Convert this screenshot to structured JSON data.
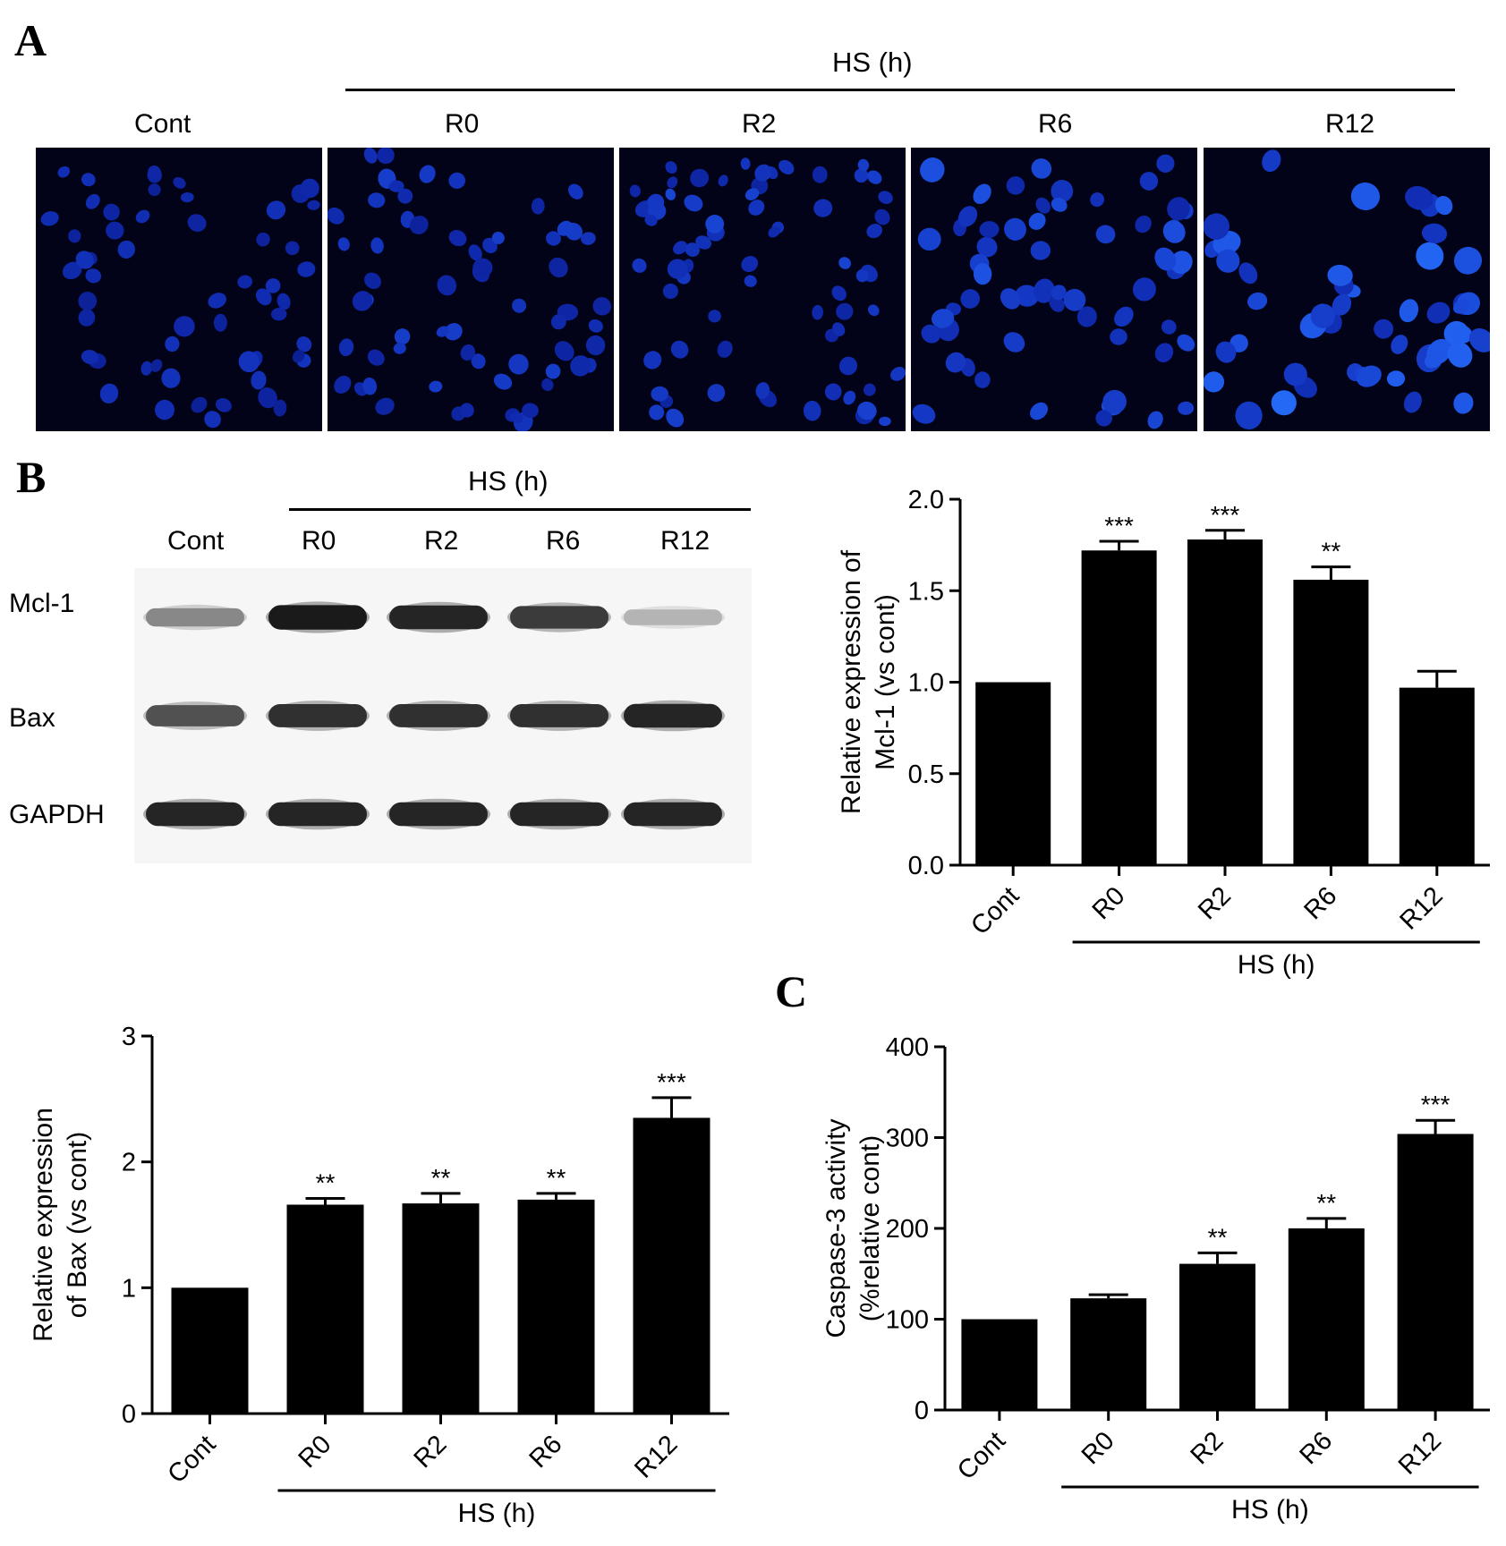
{
  "panels": {
    "a": {
      "letter": "A",
      "group_label": "HS (h)",
      "images": [
        {
          "label": "Cont",
          "nuclei": 55,
          "size": 1.0,
          "bright": 0.55
        },
        {
          "label": "R0",
          "nuclei": 62,
          "size": 1.0,
          "bright": 0.65
        },
        {
          "label": "R2",
          "nuclei": 70,
          "size": 0.95,
          "bright": 0.7
        },
        {
          "label": "R6",
          "nuclei": 58,
          "size": 1.15,
          "bright": 0.8
        },
        {
          "label": "R12",
          "nuclei": 48,
          "size": 1.35,
          "bright": 0.95
        }
      ]
    },
    "b": {
      "letter": "B",
      "group_label": "HS (h)",
      "lanes": [
        "Cont",
        "R0",
        "R2",
        "R6",
        "R12"
      ],
      "blots": [
        {
          "label": "Mcl-1",
          "intensity": [
            0.45,
            0.95,
            0.9,
            0.8,
            0.25
          ]
        },
        {
          "label": "Bax",
          "intensity": [
            0.7,
            0.85,
            0.85,
            0.85,
            0.9
          ]
        },
        {
          "label": "GAPDH",
          "intensity": [
            0.9,
            0.9,
            0.9,
            0.9,
            0.9
          ]
        }
      ]
    },
    "c": {
      "letter": "C"
    }
  },
  "chart_data": [
    {
      "type": "bar",
      "id": "mcl1",
      "categories": [
        "Cont",
        "R0",
        "R2",
        "R6",
        "R12"
      ],
      "values": [
        1.0,
        1.72,
        1.78,
        1.56,
        0.97
      ],
      "errors": [
        0,
        0.05,
        0.05,
        0.07,
        0.09
      ],
      "significance": [
        "",
        "***",
        "***",
        "**",
        ""
      ],
      "ylabel_lines": [
        "Relative expression of",
        "Mcl-1 (vs cont)"
      ],
      "ylim": [
        0,
        2.0
      ],
      "yticks": [
        "0.0",
        "0.5",
        "1.0",
        "1.5",
        "2.0"
      ],
      "group_label": "HS (h)"
    },
    {
      "type": "bar",
      "id": "bax",
      "categories": [
        "Cont",
        "R0",
        "R2",
        "R6",
        "R12"
      ],
      "values": [
        1.0,
        1.66,
        1.67,
        1.7,
        2.35
      ],
      "errors": [
        0,
        0.05,
        0.08,
        0.05,
        0.16
      ],
      "significance": [
        "",
        "**",
        "**",
        "**",
        "***"
      ],
      "ylabel_lines": [
        "Relative expression",
        "of Bax (vs cont)"
      ],
      "ylim": [
        0,
        3
      ],
      "yticks": [
        "0",
        "1",
        "2",
        "3"
      ],
      "group_label": "HS (h)"
    },
    {
      "type": "bar",
      "id": "casp",
      "categories": [
        "Cont",
        "R0",
        "R2",
        "R6",
        "R12"
      ],
      "values": [
        100,
        123,
        161,
        200,
        304
      ],
      "errors": [
        0,
        4,
        12,
        11,
        15
      ],
      "significance": [
        "",
        "",
        "**",
        "**",
        "***"
      ],
      "ylabel_lines": [
        "Caspase-3 activity",
        "(%relative cont)"
      ],
      "ylim": [
        0,
        400
      ],
      "yticks": [
        "0",
        "100",
        "200",
        "300",
        "400"
      ],
      "group_label": "HS (h)"
    }
  ]
}
